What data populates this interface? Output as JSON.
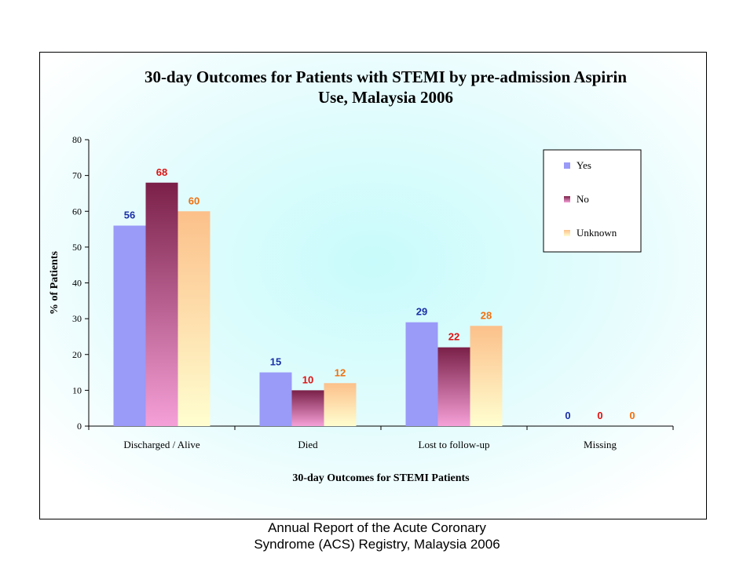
{
  "chart_data": {
    "type": "bar",
    "title_lines": [
      "30-day Outcomes for Patients with STEMI by pre-admission Aspirin",
      "Use, Malaysia 2006"
    ],
    "xlabel": "30-day Outcomes for STEMI Patients",
    "ylabel": "% of Patients",
    "ylim": [
      0,
      80
    ],
    "yticks": [
      0,
      10,
      20,
      30,
      40,
      50,
      60,
      70,
      80
    ],
    "categories": [
      "Discharged / Alive",
      "Died",
      "Lost to follow-up",
      "Missing"
    ],
    "series": [
      {
        "name": "Yes",
        "values": [
          56,
          15,
          29,
          0
        ],
        "label_color": "#1a2fa8",
        "color_top": "#9a9af8",
        "color_bottom": "#9a9af8"
      },
      {
        "name": "No",
        "values": [
          68,
          10,
          22,
          0
        ],
        "label_color": "#e01010",
        "color_top": "#7a2048",
        "color_bottom": "#f5a0d8"
      },
      {
        "name": "Unknown",
        "values": [
          60,
          12,
          28,
          0
        ],
        "label_color": "#f07010",
        "color_top": "#fcc08a",
        "color_bottom": "#fffed0"
      }
    ],
    "legend_position": "top-right",
    "grid": false
  },
  "footer": {
    "line1": "Annual Report of the Acute Coronary",
    "line2": "Syndrome (ACS) Registry, Malaysia 2006"
  }
}
